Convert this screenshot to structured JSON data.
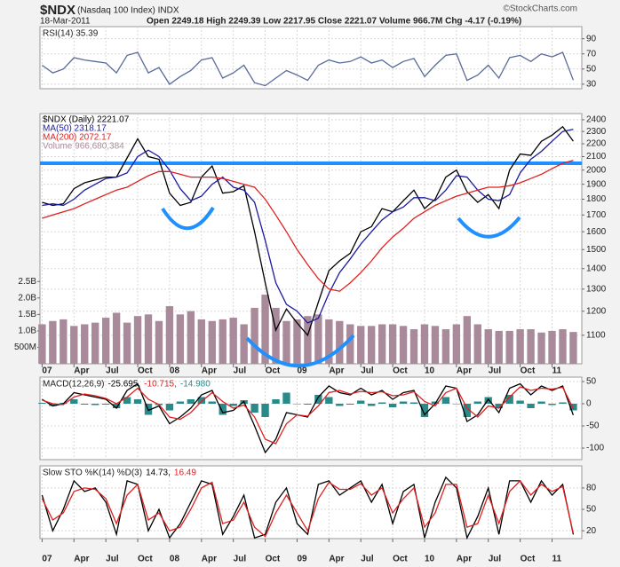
{
  "header": {
    "symbol": "$NDX",
    "name": "(Nasdaq 100 Index) INDX",
    "date": "18-Mar-2011",
    "quote": "Open 2249.18 High 2249.39 Low 2217.95 Close 2221.07 Volume 966.7M Chg -4.17 (-0.19%)",
    "credit": "©StockCharts.com"
  },
  "chart_data": [
    {
      "type": "line",
      "title": "RSI(14) 35.39",
      "grid": true,
      "x": [
        0,
        1,
        2,
        3,
        4,
        5,
        6,
        7,
        8,
        9,
        10,
        11,
        12,
        13,
        14,
        15,
        16,
        17,
        18,
        19,
        20,
        21,
        22,
        23,
        24,
        25,
        26,
        27,
        28,
        29,
        30,
        31,
        32,
        33,
        34,
        35,
        36,
        37,
        38,
        39,
        40,
        41,
        42,
        43,
        44,
        45,
        46,
        47,
        48,
        49,
        50
      ],
      "xlim": [
        -0.2,
        50.8
      ],
      "ylim": [
        24,
        106
      ],
      "yticks": [
        30,
        50,
        70,
        90
      ],
      "series": [
        {
          "color": "#5a6a9a",
          "values": [
            55,
            45,
            50,
            65,
            62,
            60,
            58,
            45,
            68,
            72,
            45,
            52,
            30,
            40,
            48,
            62,
            65,
            38,
            45,
            55,
            32,
            28,
            38,
            48,
            42,
            35,
            55,
            62,
            58,
            60,
            66,
            58,
            62,
            52,
            60,
            64,
            40,
            55,
            68,
            70,
            35,
            42,
            55,
            38,
            65,
            68,
            60,
            70,
            66,
            72,
            35.39
          ]
        }
      ]
    },
    {
      "type": "line",
      "log_scale": true,
      "grid": true,
      "reference_line": 2050,
      "reference_color": "#1e90ff",
      "x": [
        0,
        1,
        2,
        3,
        4,
        5,
        6,
        7,
        8,
        9,
        10,
        11,
        12,
        13,
        14,
        15,
        16,
        17,
        18,
        19,
        20,
        21,
        22,
        23,
        24,
        25,
        26,
        27,
        28,
        29,
        30,
        31,
        32,
        33,
        34,
        35,
        36,
        37,
        38,
        39,
        40,
        41,
        42,
        43,
        44,
        45,
        46,
        47,
        48,
        49,
        50
      ],
      "xlim": [
        -0.2,
        50.8
      ],
      "xticks": [
        {
          "value": 0,
          "label": "07"
        },
        {
          "value": 3,
          "label": "Apr"
        },
        {
          "value": 6,
          "label": "Jul"
        },
        {
          "value": 9,
          "label": "Oct"
        },
        {
          "value": 12,
          "label": "08"
        },
        {
          "value": 15,
          "label": "Apr"
        },
        {
          "value": 18,
          "label": "Jul"
        },
        {
          "value": 21,
          "label": "Oct"
        },
        {
          "value": 24,
          "label": "09"
        },
        {
          "value": 27,
          "label": "Apr"
        },
        {
          "value": 30,
          "label": "Jul"
        },
        {
          "value": 33,
          "label": "Oct"
        },
        {
          "value": 36,
          "label": "10"
        },
        {
          "value": 39,
          "label": "Apr"
        },
        {
          "value": 42,
          "label": "Jul"
        },
        {
          "value": 45,
          "label": "Oct"
        },
        {
          "value": 48,
          "label": "11"
        }
      ],
      "ylim": [
        992,
        2454
      ],
      "yticks": [
        1100,
        1200,
        1300,
        1400,
        1500,
        1600,
        1700,
        1800,
        1900,
        2000,
        2100,
        2200,
        2300,
        2400
      ],
      "y2lim": [
        0,
        7600000000
      ],
      "y2ticks": [
        {
          "value": 500000000,
          "label": "500M"
        },
        {
          "value": 1000000000,
          "label": "1.0B"
        },
        {
          "value": 1500000000,
          "label": "1.5B"
        },
        {
          "value": 2000000000,
          "label": "2.0B"
        },
        {
          "value": 2500000000,
          "label": "2.5B"
        }
      ],
      "series": [
        {
          "name": "Volume 966,680,384",
          "type": "bar",
          "axis": "y2",
          "color": "#a98a9b",
          "values": [
            1200000000,
            1300000000,
            1350000000,
            1150000000,
            1200000000,
            1250000000,
            1400000000,
            1550000000,
            1250000000,
            1450000000,
            1500000000,
            1300000000,
            1750000000,
            1500000000,
            1600000000,
            1350000000,
            1300000000,
            1350000000,
            1400000000,
            1200000000,
            1700000000,
            2100000000,
            1700000000,
            1300000000,
            1350000000,
            1450000000,
            1500000000,
            1350000000,
            1300000000,
            1200000000,
            1150000000,
            1150000000,
            1200000000,
            1200000000,
            1150000000,
            1050000000,
            1200000000,
            1150000000,
            1050000000,
            1200000000,
            1450000000,
            1200000000,
            1050000000,
            1000000000,
            1000000000,
            1050000000,
            1050000000,
            950000000,
            1000000000,
            1050000000,
            966680384
          ]
        },
        {
          "name": "$NDX (Daily) 2221.07",
          "color": "#000000",
          "values": [
            1780,
            1760,
            1770,
            1870,
            1910,
            1930,
            1950,
            1950,
            2090,
            2240,
            2100,
            2080,
            1840,
            1760,
            1780,
            1950,
            2030,
            1840,
            1850,
            1890,
            1600,
            1330,
            1120,
            1210,
            1150,
            1100,
            1240,
            1390,
            1440,
            1480,
            1600,
            1630,
            1740,
            1720,
            1790,
            1860,
            1740,
            1800,
            1950,
            2000,
            1850,
            1780,
            1830,
            1740,
            2000,
            2120,
            2110,
            2220,
            2270,
            2340,
            2221.07
          ]
        },
        {
          "name": "MA(50) 2318.17",
          "color": "#1a1aa0",
          "values": [
            1760,
            1770,
            1760,
            1800,
            1860,
            1900,
            1940,
            1950,
            1980,
            2100,
            2150,
            2100,
            2000,
            1870,
            1790,
            1820,
            1900,
            1950,
            1880,
            1860,
            1780,
            1550,
            1330,
            1230,
            1200,
            1150,
            1170,
            1280,
            1380,
            1450,
            1530,
            1600,
            1670,
            1720,
            1750,
            1810,
            1810,
            1790,
            1860,
            1960,
            1950,
            1860,
            1800,
            1790,
            1830,
            1980,
            2080,
            2140,
            2220,
            2300,
            2318.17
          ]
        },
        {
          "name": "MA(200) 2072.17",
          "color": "#e02020",
          "values": [
            1680,
            1700,
            1720,
            1740,
            1770,
            1800,
            1830,
            1860,
            1880,
            1920,
            1960,
            1990,
            1990,
            1970,
            1950,
            1950,
            1950,
            1940,
            1920,
            1900,
            1880,
            1800,
            1700,
            1600,
            1500,
            1420,
            1350,
            1300,
            1290,
            1330,
            1380,
            1440,
            1510,
            1570,
            1620,
            1680,
            1720,
            1760,
            1790,
            1820,
            1840,
            1860,
            1880,
            1880,
            1890,
            1910,
            1940,
            1970,
            2010,
            2050,
            2072.17
          ]
        }
      ]
    },
    {
      "type": "line",
      "title": "MACD(12,26,9)",
      "grid": true,
      "x": [
        0,
        1,
        2,
        3,
        4,
        5,
        6,
        7,
        8,
        9,
        10,
        11,
        12,
        13,
        14,
        15,
        16,
        17,
        18,
        19,
        20,
        21,
        22,
        23,
        24,
        25,
        26,
        27,
        28,
        29,
        30,
        31,
        32,
        33,
        34,
        35,
        36,
        37,
        38,
        39,
        40,
        41,
        42,
        43,
        44,
        45,
        46,
        47,
        48,
        49,
        50
      ],
      "xlim": [
        -0.2,
        50.8
      ],
      "ylim": [
        -126,
        60
      ],
      "yticks": [
        -100,
        -50,
        0,
        50
      ],
      "series": [
        {
          "name": "-25.695,",
          "color": "#000000",
          "values": [
            10,
            -5,
            0,
            25,
            20,
            15,
            10,
            -10,
            30,
            45,
            -15,
            -5,
            -45,
            -30,
            -10,
            20,
            30,
            -20,
            -15,
            5,
            -50,
            -110,
            -80,
            -20,
            -25,
            -30,
            15,
            40,
            25,
            20,
            35,
            20,
            30,
            10,
            25,
            30,
            -25,
            0,
            40,
            35,
            -40,
            -25,
            10,
            -20,
            35,
            45,
            20,
            40,
            30,
            40,
            -25.695
          ]
        },
        {
          "name": "-10.715,",
          "color": "#e02020",
          "values": [
            8,
            0,
            -2,
            15,
            22,
            18,
            12,
            0,
            15,
            35,
            10,
            -2,
            -30,
            -35,
            -20,
            5,
            25,
            5,
            -10,
            -3,
            -30,
            -80,
            -90,
            -45,
            -25,
            -28,
            -5,
            25,
            30,
            22,
            28,
            25,
            27,
            18,
            20,
            27,
            5,
            -5,
            25,
            35,
            -10,
            -30,
            -5,
            -10,
            15,
            38,
            30,
            35,
            33,
            37,
            -10.715
          ]
        },
        {
          "name": "-14.980",
          "type": "bar",
          "color": "#2a8a8a",
          "values": [
            2,
            -5,
            2,
            10,
            -2,
            -3,
            -2,
            -10,
            15,
            10,
            -25,
            -3,
            -15,
            5,
            10,
            15,
            5,
            -25,
            -5,
            8,
            -20,
            -30,
            10,
            25,
            0,
            -2,
            20,
            15,
            -5,
            -2,
            7,
            -5,
            3,
            -8,
            5,
            3,
            -30,
            5,
            15,
            0,
            -30,
            5,
            15,
            -10,
            20,
            7,
            -10,
            5,
            -3,
            3,
            -14.98
          ]
        }
      ]
    },
    {
      "type": "line",
      "title": "Slow STO %K(14) %D(3)",
      "grid": true,
      "x": [
        0,
        1,
        2,
        3,
        4,
        5,
        6,
        7,
        8,
        9,
        10,
        11,
        12,
        13,
        14,
        15,
        16,
        17,
        18,
        19,
        20,
        21,
        22,
        23,
        24,
        25,
        26,
        27,
        28,
        29,
        30,
        31,
        32,
        33,
        34,
        35,
        36,
        37,
        38,
        39,
        40,
        41,
        42,
        43,
        44,
        45,
        46,
        47,
        48,
        49,
        50
      ],
      "xlim": [
        -0.2,
        50.8
      ],
      "xticks": [
        {
          "value": 0,
          "label": "07"
        },
        {
          "value": 3,
          "label": "Apr"
        },
        {
          "value": 6,
          "label": "Jul"
        },
        {
          "value": 9,
          "label": "Oct"
        },
        {
          "value": 12,
          "label": "08"
        },
        {
          "value": 15,
          "label": "Apr"
        },
        {
          "value": 18,
          "label": "Jul"
        },
        {
          "value": 21,
          "label": "Oct"
        },
        {
          "value": 24,
          "label": "09"
        },
        {
          "value": 27,
          "label": "Apr"
        },
        {
          "value": 30,
          "label": "Jul"
        },
        {
          "value": 33,
          "label": "Oct"
        },
        {
          "value": 36,
          "label": "10"
        },
        {
          "value": 39,
          "label": "Apr"
        },
        {
          "value": 42,
          "label": "Jul"
        },
        {
          "value": 45,
          "label": "Oct"
        },
        {
          "value": 48,
          "label": "11"
        }
      ],
      "ylim": [
        9,
        111
      ],
      "yticks": [
        20,
        50,
        80
      ],
      "series": [
        {
          "name": "14.73,",
          "color": "#000000",
          "values": [
            70,
            20,
            50,
            90,
            75,
            80,
            60,
            15,
            90,
            85,
            20,
            50,
            10,
            30,
            60,
            90,
            85,
            15,
            40,
            70,
            10,
            15,
            60,
            80,
            30,
            15,
            85,
            90,
            70,
            80,
            90,
            60,
            85,
            30,
            75,
            85,
            10,
            60,
            95,
            80,
            10,
            40,
            80,
            15,
            90,
            90,
            60,
            90,
            70,
            85,
            14.73
          ]
        },
        {
          "name": "16.49",
          "color": "#e02020",
          "values": [
            65,
            35,
            45,
            75,
            80,
            78,
            65,
            30,
            70,
            85,
            35,
            45,
            20,
            25,
            50,
            80,
            88,
            30,
            35,
            60,
            25,
            12,
            45,
            70,
            45,
            20,
            65,
            88,
            78,
            78,
            86,
            70,
            80,
            45,
            65,
            80,
            25,
            45,
            85,
            85,
            25,
            30,
            70,
            30,
            75,
            90,
            70,
            85,
            75,
            82,
            16.49
          ]
        }
      ]
    }
  ]
}
